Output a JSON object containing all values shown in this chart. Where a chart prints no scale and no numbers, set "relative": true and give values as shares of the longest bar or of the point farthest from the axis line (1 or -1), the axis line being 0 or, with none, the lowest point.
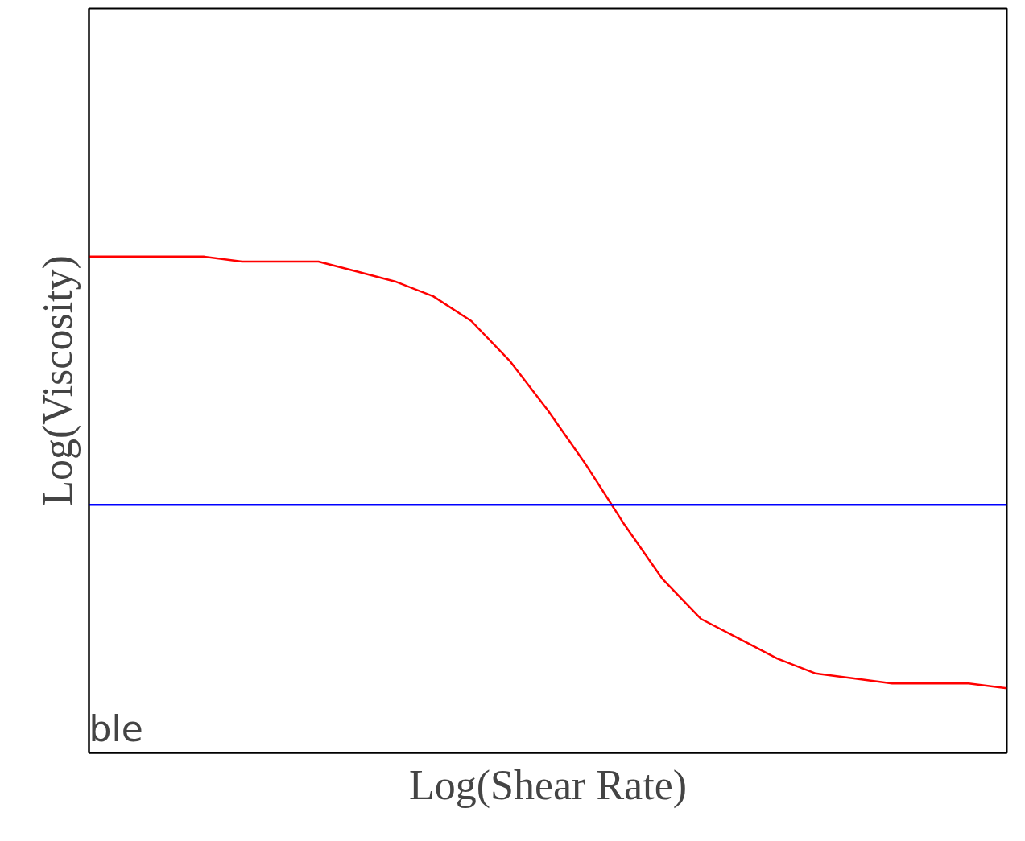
{
  "chart_data": {
    "type": "line",
    "relative": true,
    "xlabel": "Log(Shear Rate)",
    "ylabel": "Log(Viscosity)",
    "categories": [
      null,
      null,
      null,
      null,
      null,
      null,
      null,
      null,
      null,
      null,
      null,
      null,
      null,
      null,
      null,
      null,
      null,
      null,
      null,
      null,
      null,
      null,
      null,
      null,
      null
    ],
    "series": [
      {
        "color": "#ff0000",
        "values": [
          1.0,
          1.0,
          1.0,
          1.0,
          0.99,
          0.99,
          0.99,
          0.97,
          0.95,
          0.92,
          0.87,
          0.79,
          0.69,
          0.58,
          0.46,
          0.35,
          0.27,
          0.23,
          0.19,
          0.16,
          0.15,
          0.14,
          0.14,
          0.14,
          0.13
        ]
      },
      {
        "color": "#0000ff",
        "values": [
          0.5,
          0.5,
          0.5,
          0.5,
          0.5,
          0.5,
          0.5,
          0.5,
          0.5,
          0.5,
          0.5,
          0.5,
          0.5,
          0.5,
          0.5,
          0.5,
          0.5,
          0.5,
          0.5,
          0.5,
          0.5,
          0.5,
          0.5,
          0.5,
          0.5
        ]
      }
    ],
    "grid": false,
    "tick_labels": false,
    "annotations": [
      "ble"
    ]
  }
}
